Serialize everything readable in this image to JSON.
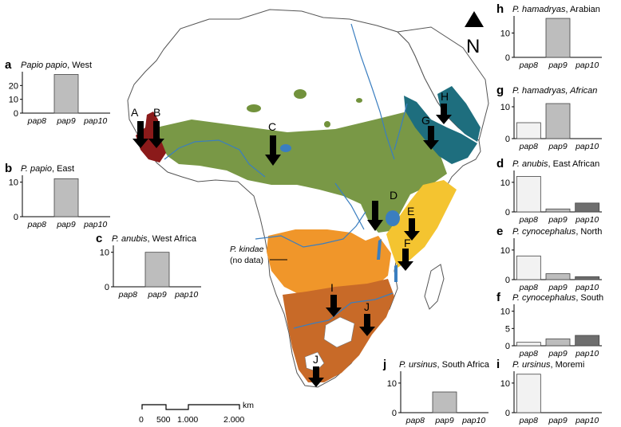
{
  "map": {
    "north_label": "N",
    "site_labels": [
      "A",
      "B",
      "C",
      "D",
      "E",
      "F",
      "G",
      "H",
      "I",
      "J",
      "J"
    ],
    "kindae_label": "P. kindae",
    "kindae_note": "(no data)",
    "scale": {
      "unit": "km",
      "ticks": [
        "0",
        "500",
        "1.000",
        "2.000"
      ]
    },
    "colors": {
      "papio": "#8b1a1a",
      "anubis": "#72923c",
      "hamadryas": "#1e6e7e",
      "cynocephalus": "#f4c430",
      "kindae": "#f0962a",
      "ursinus": "#c86a28",
      "river": "#3a7ec0"
    }
  },
  "panels": [
    {
      "letter": "a",
      "species": "Papio papio",
      "region": ", West",
      "yticks": [
        "0",
        "10",
        "20"
      ],
      "ymax": 30,
      "categories": [
        "pap8",
        "pap9",
        "pap10"
      ],
      "values": [
        0,
        28,
        0
      ],
      "fills": [
        "#f2f2f2",
        "#bdbdbd",
        "#6e6e6e"
      ]
    },
    {
      "letter": "b",
      "species": "P. papio",
      "region": ", East",
      "yticks": [
        "0",
        "10"
      ],
      "ymax": 12,
      "categories": [
        "pap8",
        "pap9",
        "pap10"
      ],
      "values": [
        0,
        11,
        0
      ],
      "fills": [
        "#f2f2f2",
        "#bdbdbd",
        "#6e6e6e"
      ]
    },
    {
      "letter": "c",
      "species": "P. anubis",
      "region": ", West Africa",
      "yticks": [
        "0",
        "10"
      ],
      "ymax": 12,
      "categories": [
        "pap8",
        "pap9",
        "pap10"
      ],
      "values": [
        0,
        10,
        0
      ],
      "fills": [
        "#f2f2f2",
        "#bdbdbd",
        "#6e6e6e"
      ]
    },
    {
      "letter": "h",
      "species": "P. hamadryas",
      "region": ", Arabian",
      "yticks": [
        "0",
        "10"
      ],
      "ymax": 17,
      "categories": [
        "pap8",
        "pap9",
        "pap10"
      ],
      "values": [
        0,
        16,
        0
      ],
      "fills": [
        "#f2f2f2",
        "#bdbdbd",
        "#6e6e6e"
      ]
    },
    {
      "letter": "g",
      "species": "P. hamadryas, African",
      "region": "",
      "yticks": [
        "0",
        "10"
      ],
      "ymax": 13,
      "categories": [
        "pap8",
        "pap9",
        "pap10"
      ],
      "values": [
        5,
        11,
        0
      ],
      "fills": [
        "#f2f2f2",
        "#bdbdbd",
        "#6e6e6e"
      ]
    },
    {
      "letter": "d",
      "species": "P. anubis",
      "region": ", East African",
      "yticks": [
        "0",
        "10"
      ],
      "ymax": 14,
      "categories": [
        "pap8",
        "pap9",
        "pap10"
      ],
      "values": [
        12,
        1,
        3
      ],
      "fills": [
        "#f2f2f2",
        "#bdbdbd",
        "#6e6e6e"
      ]
    },
    {
      "letter": "e",
      "species": "P. cynocephalus",
      "region": ", North",
      "yticks": [
        "0",
        "10"
      ],
      "ymax": 14,
      "categories": [
        "pap8",
        "pap9",
        "pap10"
      ],
      "values": [
        8,
        2,
        1
      ],
      "fills": [
        "#f2f2f2",
        "#bdbdbd",
        "#6e6e6e"
      ]
    },
    {
      "letter": "f",
      "species": "P. cynocephalus",
      "region": ", South",
      "yticks": [
        "0",
        "5",
        "10"
      ],
      "ymax": 12,
      "categories": [
        "pap8",
        "pap9",
        "pap10"
      ],
      "values": [
        1,
        2,
        3
      ],
      "fills": [
        "#f2f2f2",
        "#bdbdbd",
        "#6e6e6e"
      ]
    },
    {
      "letter": "j",
      "species": "P. ursinus",
      "region": ", South Africa",
      "yticks": [
        "0",
        "10"
      ],
      "ymax": 14,
      "categories": [
        "pap8",
        "pap9",
        "pap10"
      ],
      "values": [
        0,
        7,
        0
      ],
      "fills": [
        "#f2f2f2",
        "#bdbdbd",
        "#6e6e6e"
      ]
    },
    {
      "letter": "i",
      "species": "P. ursinus",
      "region": ", Moremi",
      "yticks": [
        "0",
        "10"
      ],
      "ymax": 14,
      "categories": [
        "pap8",
        "pap9",
        "pap10"
      ],
      "values": [
        13,
        0,
        0
      ],
      "fills": [
        "#f2f2f2",
        "#bdbdbd",
        "#6e6e6e"
      ]
    }
  ]
}
